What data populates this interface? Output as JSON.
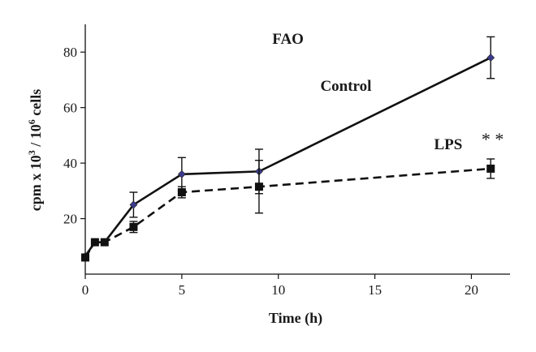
{
  "chart_data": {
    "type": "line",
    "title": "FAO",
    "xlabel": "Time (h)",
    "ylabel": "cpm x 10",
    "ylabel_sup1": "3",
    "ylabel_mid": " / 10",
    "ylabel_sup2": "6",
    "ylabel_end": " cells",
    "xlim": [
      0,
      22
    ],
    "ylim": [
      0,
      90
    ],
    "x_ticks": [
      0,
      5,
      10,
      15,
      20
    ],
    "y_ticks": [
      20,
      40,
      60,
      80
    ],
    "x_tick_labels": [
      "0",
      "5",
      "10",
      "15",
      "20"
    ],
    "y_tick_labels": [
      "20",
      "40",
      "60",
      "80"
    ],
    "grid": false,
    "series": [
      {
        "name": "Control",
        "line_style": "solid",
        "marker": "diamond",
        "marker_color": "#3a3a8c",
        "line_color": "#111111",
        "x": [
          0,
          0.5,
          1,
          2.5,
          5,
          9,
          21
        ],
        "y": [
          6.5,
          11.5,
          11.5,
          25,
          36,
          37,
          78
        ],
        "err": [
          0,
          0,
          0,
          4.5,
          6,
          8,
          7.5
        ]
      },
      {
        "name": "LPS",
        "line_style": "dashed",
        "marker": "square",
        "marker_color": "#111111",
        "line_color": "#111111",
        "x": [
          0,
          0.5,
          1,
          2.5,
          5,
          9,
          21
        ],
        "y": [
          6,
          11.5,
          11.5,
          17,
          29.5,
          31.5,
          38
        ],
        "err": [
          0,
          0,
          0,
          2,
          2,
          9.5,
          3.5
        ]
      }
    ],
    "annotations": [
      {
        "text": "FAO",
        "x": 10.5,
        "y": 83
      },
      {
        "text": "Control",
        "x": 13.5,
        "y": 66
      },
      {
        "text": "LPS",
        "x": 18.8,
        "y": 45
      },
      {
        "text": "* *",
        "x": 21.1,
        "y": 46.5
      }
    ]
  }
}
